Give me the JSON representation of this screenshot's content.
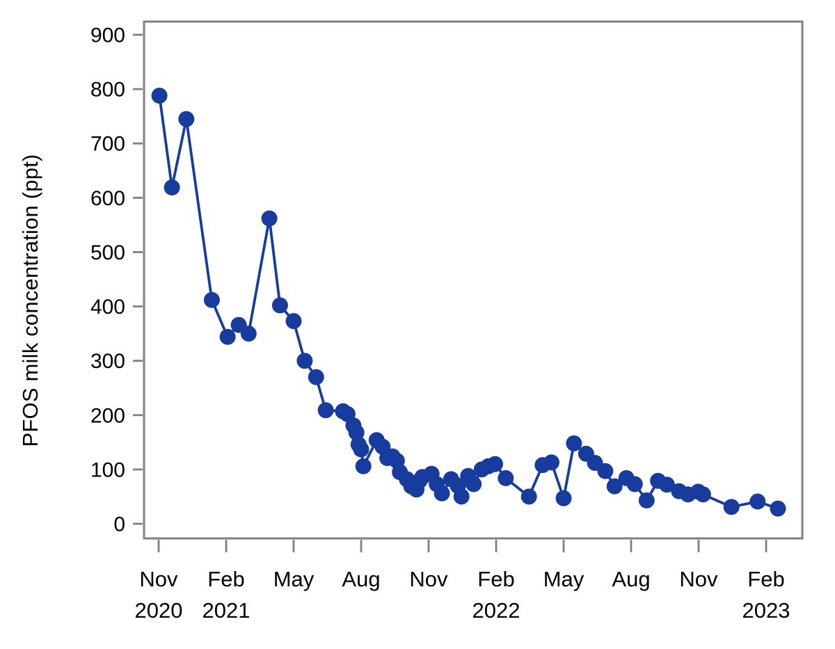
{
  "chart_data": {
    "type": "line",
    "title": "",
    "xlabel": "",
    "ylabel": "PFOS milk concentration (ppt)",
    "ylim": [
      0,
      900
    ],
    "yticks": [
      0,
      100,
      200,
      300,
      400,
      500,
      600,
      700,
      800,
      900
    ],
    "xticks": [
      {
        "month": "Nov",
        "year": "2020"
      },
      {
        "month": "Feb",
        "year": "2021"
      },
      {
        "month": "May",
        "year": ""
      },
      {
        "month": "Aug",
        "year": ""
      },
      {
        "month": "Nov",
        "year": ""
      },
      {
        "month": "Feb",
        "year": "2022"
      },
      {
        "month": "May",
        "year": ""
      },
      {
        "month": "Aug",
        "year": ""
      },
      {
        "month": "Nov",
        "year": ""
      },
      {
        "month": "Feb",
        "year": "2023"
      }
    ],
    "grid": false,
    "legend": "none",
    "colors": {
      "line": "#173C9E",
      "marker": "#173C9E",
      "axis": "#808080",
      "text": "#000000",
      "background": "#ffffff"
    },
    "series": [
      {
        "name": "PFOS milk concentration",
        "points": [
          [
            "2020-11-02",
            788
          ],
          [
            "2020-11-19",
            619
          ],
          [
            "2020-12-08",
            745
          ],
          [
            "2021-01-12",
            412
          ],
          [
            "2021-02-03",
            344
          ],
          [
            "2021-02-18",
            366
          ],
          [
            "2021-03-01",
            350
          ],
          [
            "2021-03-29",
            562
          ],
          [
            "2021-04-13",
            402
          ],
          [
            "2021-05-01",
            373
          ],
          [
            "2021-05-16",
            300
          ],
          [
            "2021-06-01",
            270
          ],
          [
            "2021-06-14",
            209
          ],
          [
            "2021-07-07",
            207
          ],
          [
            "2021-07-13",
            202
          ],
          [
            "2021-07-21",
            181
          ],
          [
            "2021-07-25",
            168
          ],
          [
            "2021-07-28",
            146
          ],
          [
            "2021-08-01",
            137
          ],
          [
            "2021-08-04",
            106
          ],
          [
            "2021-08-22",
            154
          ],
          [
            "2021-08-30",
            142
          ],
          [
            "2021-09-06",
            121
          ],
          [
            "2021-09-13",
            124
          ],
          [
            "2021-09-19",
            116
          ],
          [
            "2021-09-23",
            95
          ],
          [
            "2021-10-02",
            82
          ],
          [
            "2021-10-08",
            69
          ],
          [
            "2021-10-15",
            63
          ],
          [
            "2021-10-19",
            79
          ],
          [
            "2021-10-23",
            86
          ],
          [
            "2021-11-05",
            92
          ],
          [
            "2021-11-12",
            73
          ],
          [
            "2021-11-19",
            56
          ],
          [
            "2021-12-01",
            82
          ],
          [
            "2021-12-10",
            70
          ],
          [
            "2021-12-15",
            50
          ],
          [
            "2021-12-24",
            88
          ],
          [
            "2022-01-01",
            73
          ],
          [
            "2022-01-12",
            100
          ],
          [
            "2022-01-21",
            106
          ],
          [
            "2022-01-30",
            110
          ],
          [
            "2022-02-14",
            84
          ],
          [
            "2022-03-15",
            50
          ],
          [
            "2022-04-03",
            108
          ],
          [
            "2022-04-15",
            113
          ],
          [
            "2022-05-01",
            47
          ],
          [
            "2022-05-15",
            148
          ],
          [
            "2022-06-01",
            129
          ],
          [
            "2022-06-13",
            112
          ],
          [
            "2022-06-27",
            97
          ],
          [
            "2022-07-09",
            69
          ],
          [
            "2022-07-25",
            84
          ],
          [
            "2022-08-06",
            73
          ],
          [
            "2022-08-22",
            43
          ],
          [
            "2022-09-07",
            79
          ],
          [
            "2022-09-19",
            72
          ],
          [
            "2022-10-05",
            60
          ],
          [
            "2022-10-17",
            54
          ],
          [
            "2022-10-31",
            59
          ],
          [
            "2022-11-07",
            54
          ],
          [
            "2022-12-15",
            31
          ],
          [
            "2023-01-20",
            41
          ],
          [
            "2023-02-17",
            28
          ]
        ]
      }
    ]
  }
}
